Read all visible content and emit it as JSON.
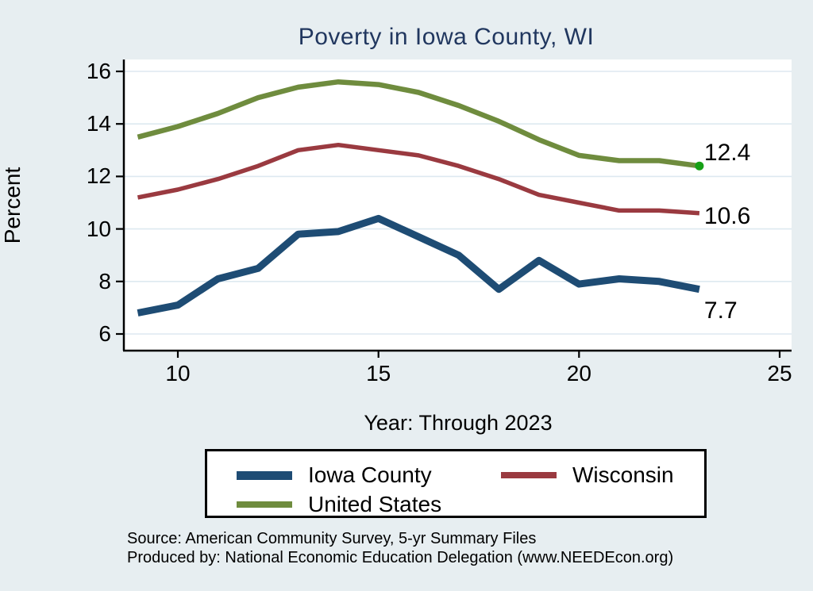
{
  "page": {
    "background_color": "#e7eef1",
    "title_color": "#21375f"
  },
  "chart_data": {
    "type": "line",
    "title": "Poverty in Iowa County, WI",
    "xlabel": "Year: Through 2023",
    "ylabel": "Percent",
    "x": [
      9,
      10,
      11,
      12,
      13,
      14,
      15,
      16,
      17,
      18,
      19,
      20,
      21,
      22,
      23
    ],
    "xticks": [
      10,
      15,
      20,
      25
    ],
    "xtick_labels": [
      "10",
      "15",
      "20",
      "25"
    ],
    "yticks": [
      6,
      8,
      10,
      12,
      14,
      16
    ],
    "ytick_labels": [
      "6",
      "8",
      "10",
      "12",
      "14",
      "16"
    ],
    "xlim": [
      8.7,
      25.3
    ],
    "ylim": [
      5.3,
      16.5
    ],
    "grid": true,
    "legend_position": "bottom",
    "series": [
      {
        "name": "Iowa County",
        "color": "#1e4c74",
        "values": [
          6.8,
          7.1,
          8.1,
          8.5,
          9.8,
          9.9,
          10.4,
          9.7,
          9.0,
          7.7,
          8.8,
          7.9,
          8.1,
          8.0,
          7.7
        ],
        "end_label": "7.7"
      },
      {
        "name": "Wisconsin",
        "color": "#9a3a40",
        "values": [
          11.2,
          11.5,
          11.9,
          12.4,
          13.0,
          13.2,
          13.0,
          12.8,
          12.4,
          11.9,
          11.3,
          11.0,
          10.7,
          10.7,
          10.6
        ],
        "end_label": "10.6"
      },
      {
        "name": "United States",
        "color": "#6f8c3e",
        "values": [
          13.5,
          13.9,
          14.4,
          15.0,
          15.4,
          15.6,
          15.5,
          15.2,
          14.7,
          14.1,
          13.4,
          12.8,
          12.6,
          12.6,
          12.4
        ],
        "end_label": "12.4",
        "end_marker_color": "#16a016"
      }
    ]
  },
  "footer": {
    "line1": "Source: American Community Survey, 5-yr Summary Files",
    "line2": "Produced by: National Economic Education Delegation (www.NEEDEcon.org)"
  }
}
